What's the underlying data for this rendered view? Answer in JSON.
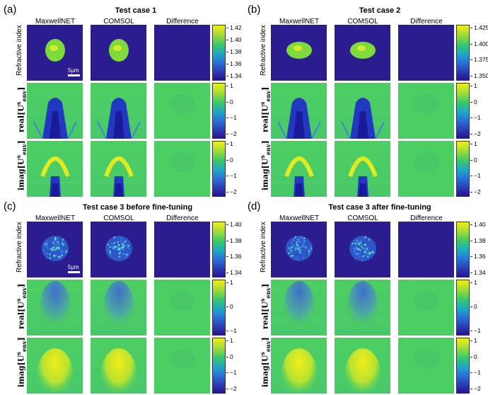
{
  "colors": {
    "navy": "#2b1d8f",
    "green": "#4fd45a",
    "lime": "#aee63a",
    "blue": "#2338c0"
  },
  "columns": [
    "MaxwellNET",
    "COMSOL",
    "Difference"
  ],
  "row_labels": {
    "ri": "Refractive index",
    "real": "real[U",
    "imag": "imag[U",
    "sup": "s",
    "sub": "env",
    "close": "]"
  },
  "scalebar_label": "5μm",
  "panels": [
    {
      "label": "(a)",
      "title": "Test case 1",
      "ri_ticks": [
        "1.42",
        "1.40",
        "1.38",
        "1.36",
        "1.34"
      ],
      "real_ticks": [
        "1",
        "0",
        "−1",
        "−2"
      ],
      "imag_ticks": [
        "1",
        "0",
        "−1",
        "−2"
      ]
    },
    {
      "label": "(b)",
      "title": "Test case 2",
      "ri_ticks": [
        "1.425",
        "1.400",
        "1.375",
        "1.350"
      ],
      "real_ticks": [
        "1",
        "0",
        "−1",
        "−2"
      ],
      "imag_ticks": [
        "1",
        "0",
        "−1",
        "−2"
      ]
    },
    {
      "label": "(c)",
      "title": "Test case 3 before fine-tuning",
      "ri_ticks": [
        "1.40",
        "1.38",
        "1.36",
        "1.34"
      ],
      "real_ticks": [
        "1",
        "0",
        "−1"
      ],
      "imag_ticks": [
        "1",
        "0",
        "−1",
        "−2"
      ]
    },
    {
      "label": "(d)",
      "title": "Test case 3 after fine-tuning",
      "ri_ticks": [
        "1.40",
        "1.38",
        "1.36",
        "1.34"
      ],
      "real_ticks": [
        "1",
        "0",
        "−1"
      ],
      "imag_ticks": [
        "1",
        "0",
        "−1",
        "−2"
      ]
    }
  ]
}
